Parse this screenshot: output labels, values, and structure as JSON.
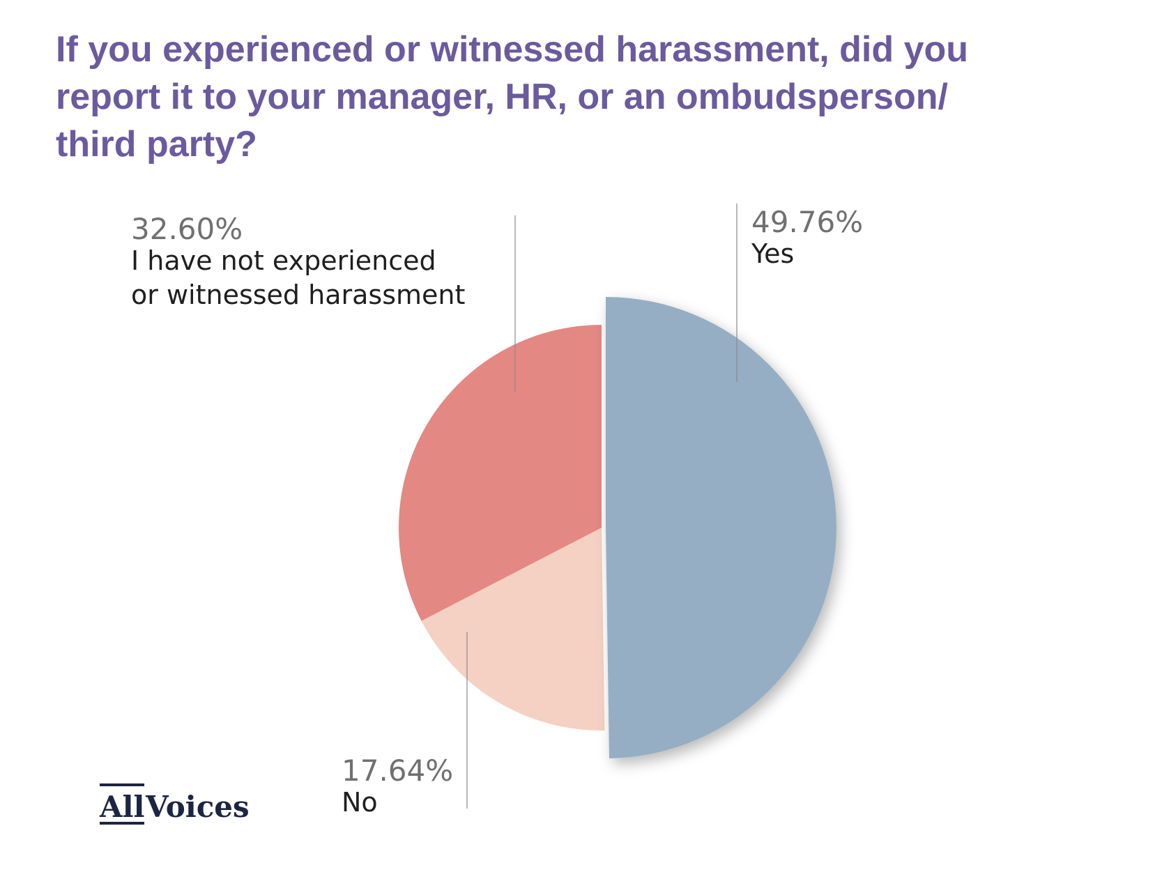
{
  "chart_data": {
    "type": "pie",
    "title": "If you experienced or witnessed harassment, did you report it to your manager, HR, or an ombudsperson/ third party?",
    "title_lines": [
      "If you experienced or witnessed harassment, did you",
      "report it to your manager, HR, or an ombudsperson/",
      "third party?"
    ],
    "slices": [
      {
        "label": "Yes",
        "label_lines": [
          "Yes"
        ],
        "value": 49.76,
        "percent_label": "49.76%",
        "color": "#95aec4"
      },
      {
        "label": "No",
        "label_lines": [
          "No"
        ],
        "value": 17.64,
        "percent_label": "17.64%",
        "color": "#f4d1c3"
      },
      {
        "label": "I have not experienced or witnessed harassment",
        "label_lines": [
          "I have not experienced",
          "or witnessed harassment"
        ],
        "value": 32.6,
        "percent_label": "32.60%",
        "color": "#e38882"
      }
    ],
    "start_angle_deg": 0,
    "direction": "clockwise",
    "exploded_slice": "Yes",
    "legend": "none"
  },
  "branding": {
    "logo_part1": "All",
    "logo_part2": "Voices",
    "logo_color": "#1c2541"
  },
  "colors": {
    "title": "#6b5a9e",
    "percent_text": "#707070",
    "category_text": "#1f1f1f",
    "leader_line": "#8a8a8a"
  }
}
